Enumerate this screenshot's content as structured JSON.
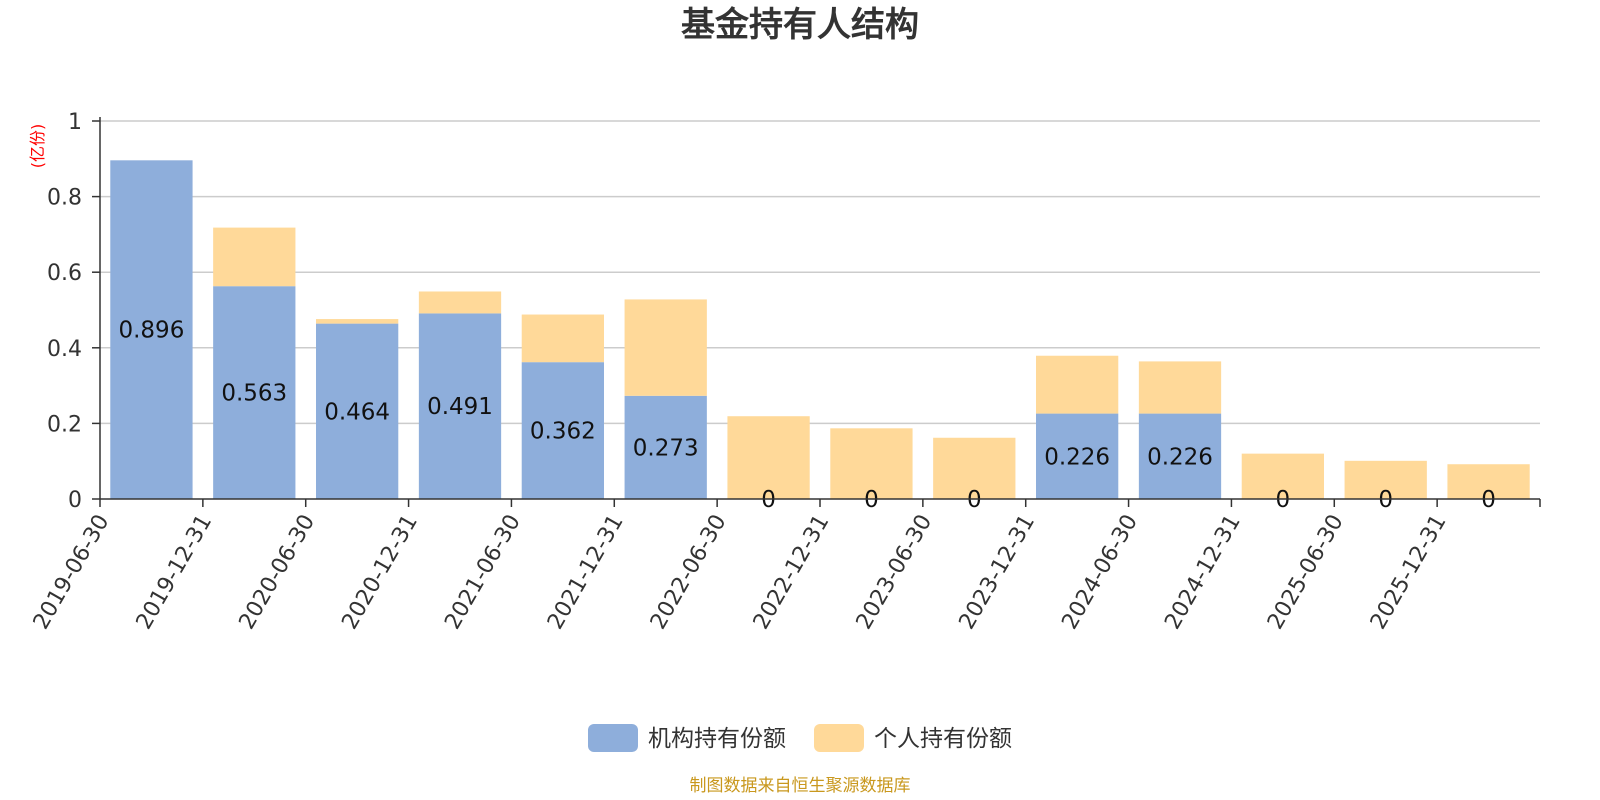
{
  "chart_data": {
    "type": "bar",
    "stacked": true,
    "title": "基金持有人结构",
    "unit_label": "(亿份)",
    "categories": [
      "2019-06-30",
      "2019-12-31",
      "2020-06-30",
      "2020-12-31",
      "2021-06-30",
      "2021-12-31",
      "2022-06-30",
      "2022-12-31",
      "2023-06-30",
      "2023-12-31",
      "2024-06-30",
      "2024-12-31",
      "2025-06-30",
      "2025-12-31"
    ],
    "series": [
      {
        "name": "机构持有份额",
        "color": "#8eaedb",
        "values": [
          0.896,
          0.563,
          0.464,
          0.491,
          0.362,
          0.273,
          0,
          0,
          0,
          0.226,
          0.226,
          0,
          0,
          0
        ],
        "labels": [
          "0.896",
          "0.563",
          "0.464",
          "0.491",
          "0.362",
          "0.273",
          "0",
          "0",
          "0",
          "0.226",
          "0.226",
          "0",
          "0",
          "0"
        ]
      },
      {
        "name": "个人持有份额",
        "color": "#ffd999",
        "values": [
          0,
          0.155,
          0.012,
          0.058,
          0.126,
          0.255,
          0.219,
          0.187,
          0.162,
          0.153,
          0.138,
          0.12,
          0.101,
          0.092
        ]
      }
    ],
    "ylim": [
      0,
      1
    ],
    "yticks": [
      "0",
      "0.2",
      "0.4",
      "0.6",
      "0.8",
      "1"
    ],
    "ytick_values": [
      0,
      0.2,
      0.4,
      0.6,
      0.8,
      1
    ],
    "grid": true,
    "legend_position": "bottom"
  },
  "source_note": "制图数据来自恒生聚源数据库"
}
